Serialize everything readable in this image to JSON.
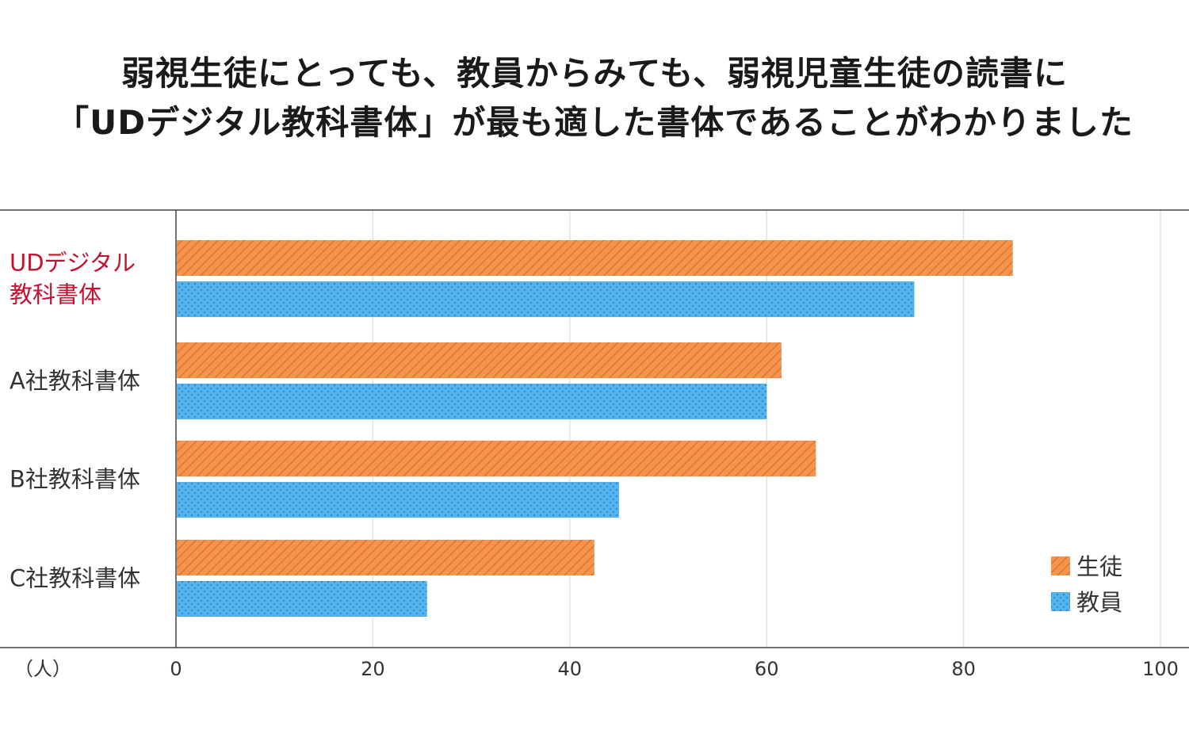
{
  "title_lines": [
    "弱視生徒にとっても、教員からみても、弱視児童生徒の読書に",
    "「UDデジタル教科書体」が最も適した書体であることがわかりました"
  ],
  "chart_data": {
    "type": "bar",
    "orientation": "horizontal",
    "categories": [
      {
        "lines": [
          "UDデジタル",
          "教科書体"
        ],
        "highlight": true
      },
      {
        "lines": [
          "A社教科書体"
        ],
        "highlight": false
      },
      {
        "lines": [
          "B社教科書体"
        ],
        "highlight": false
      },
      {
        "lines": [
          "C社教科書体"
        ],
        "highlight": false
      }
    ],
    "series": [
      {
        "name": "生徒",
        "values": [
          85,
          61.5,
          65,
          42.5
        ],
        "color": "#f08a45",
        "pattern": "diagonal-hatch"
      },
      {
        "name": "教員",
        "values": [
          75,
          60,
          45,
          25.5
        ],
        "color": "#4aa8e6",
        "pattern": "dots"
      }
    ],
    "unit_label": "（人）",
    "xlim": [
      0,
      100
    ],
    "xticks": [
      0,
      20,
      40,
      60,
      80,
      100
    ],
    "grid": true,
    "legend_position": "bottom-right",
    "highlight_color": "#c8102e"
  }
}
